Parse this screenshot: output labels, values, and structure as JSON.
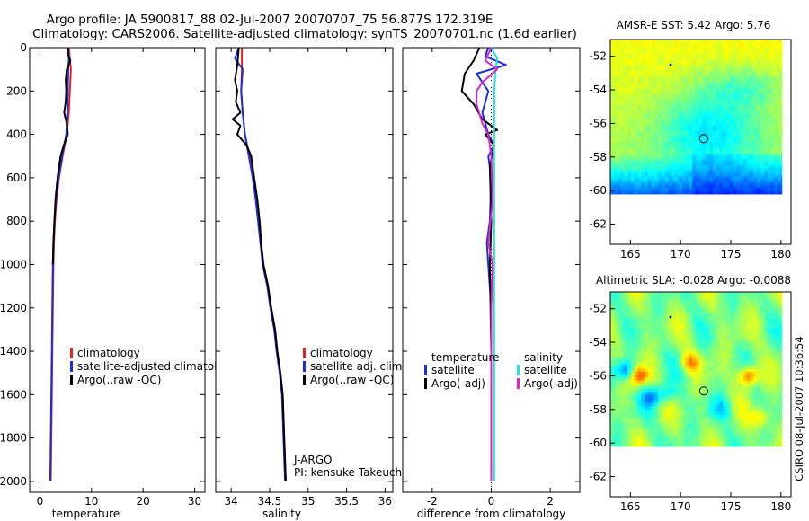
{
  "title_line1": "Argo profile: JA 5900817_88 02-Jul-2007 20070707_75 56.877S 172.319E",
  "title_line2": "Climatology: CARS2006. Satellite-adjusted climatology: synTS_20070701.nc (1.6d earlier)",
  "credit": "CSIRO 08-Jul-2007 10:36:54",
  "colors": {
    "clim": "#e8231e",
    "sat": "#1a2fd6",
    "argo": "#000000",
    "cyan": "#22e0e0",
    "magenta": "#e020d0"
  },
  "chart_data": [
    {
      "type": "line",
      "id": "temperature",
      "xlabel": "temperature",
      "xlim": [
        -2,
        32
      ],
      "ylim": [
        2050,
        0
      ],
      "xticks": [
        0,
        10,
        20,
        30
      ],
      "yticks": [
        0,
        200,
        400,
        600,
        800,
        1000,
        1200,
        1400,
        1600,
        1800,
        2000
      ],
      "legend": [
        "climatology",
        "satellite-adjusted climatology",
        "Argo(..raw -QC)"
      ],
      "series": [
        {
          "name": "climatology",
          "color": "clim",
          "points": [
            [
              5.6,
              0
            ],
            [
              5.8,
              50
            ],
            [
              6.0,
              100
            ],
            [
              5.8,
              200
            ],
            [
              5.6,
              300
            ],
            [
              5.2,
              400
            ],
            [
              4.4,
              500
            ],
            [
              3.7,
              600
            ],
            [
              3.2,
              700
            ],
            [
              2.9,
              800
            ],
            [
              2.7,
              900
            ],
            [
              2.6,
              1000
            ],
            [
              2.5,
              1200
            ],
            [
              2.4,
              1400
            ],
            [
              2.3,
              1600
            ],
            [
              2.2,
              1800
            ],
            [
              2.1,
              2000
            ]
          ]
        },
        {
          "name": "satellite-adjusted climatology",
          "color": "sat",
          "points": [
            [
              5.5,
              0
            ],
            [
              5.6,
              50
            ],
            [
              5.5,
              100
            ],
            [
              5.4,
              200
            ],
            [
              5.3,
              300
            ],
            [
              5.1,
              400
            ],
            [
              4.3,
              500
            ],
            [
              3.6,
              600
            ],
            [
              3.1,
              700
            ],
            [
              2.8,
              800
            ],
            [
              2.6,
              900
            ],
            [
              2.5,
              1000
            ],
            [
              2.4,
              1200
            ],
            [
              2.3,
              1400
            ],
            [
              2.2,
              1600
            ],
            [
              2.1,
              1800
            ],
            [
              2.0,
              2000
            ]
          ]
        },
        {
          "name": "Argo(..raw -QC)",
          "color": "argo",
          "points": [
            [
              5.4,
              0
            ],
            [
              5.4,
              30
            ],
            [
              5.9,
              60
            ],
            [
              5.2,
              100
            ],
            [
              5.0,
              150
            ],
            [
              5.1,
              200
            ],
            [
              5.0,
              250
            ],
            [
              4.7,
              300
            ],
            [
              5.2,
              350
            ],
            [
              5.4,
              400
            ],
            [
              4.6,
              450
            ],
            [
              4.0,
              500
            ],
            [
              3.4,
              600
            ],
            [
              3.0,
              700
            ],
            [
              2.8,
              800
            ],
            [
              2.6,
              900
            ],
            [
              2.5,
              1000
            ]
          ]
        }
      ]
    },
    {
      "type": "line",
      "id": "salinity",
      "xlabel": "salinity",
      "xlim": [
        33.8,
        36.1
      ],
      "ylim": [
        2050,
        0
      ],
      "xticks": [
        34,
        34.5,
        35,
        35.5,
        36
      ],
      "yticks": [
        0,
        200,
        400,
        600,
        800,
        1000,
        1200,
        1400,
        1600,
        1800,
        2000
      ],
      "legend": [
        "climatology",
        "satellite adj. clim.",
        "Argo(..raw -QC)"
      ],
      "annotation": [
        "J-ARGO",
        "PI: kensuke Takeuchi"
      ],
      "series": [
        {
          "name": "climatology",
          "color": "clim",
          "points": [
            [
              34.14,
              0
            ],
            [
              34.14,
              50
            ],
            [
              34.14,
              100
            ],
            [
              34.13,
              200
            ],
            [
              34.15,
              300
            ],
            [
              34.18,
              400
            ],
            [
              34.24,
              500
            ],
            [
              34.29,
              600
            ],
            [
              34.33,
              700
            ],
            [
              34.37,
              800
            ],
            [
              34.39,
              900
            ],
            [
              34.42,
              1000
            ],
            [
              34.48,
              1100
            ],
            [
              34.52,
              1200
            ],
            [
              34.57,
              1300
            ],
            [
              34.6,
              1400
            ],
            [
              34.64,
              1500
            ],
            [
              34.67,
              1600
            ],
            [
              34.69,
              1800
            ],
            [
              34.71,
              2000
            ]
          ]
        },
        {
          "name": "satellite adj. clim.",
          "color": "sat",
          "points": [
            [
              34.1,
              0
            ],
            [
              34.05,
              50
            ],
            [
              34.15,
              100
            ],
            [
              34.13,
              200
            ],
            [
              34.15,
              300
            ],
            [
              34.18,
              400
            ],
            [
              34.23,
              500
            ],
            [
              34.28,
              600
            ],
            [
              34.32,
              700
            ],
            [
              34.35,
              800
            ],
            [
              34.38,
              900
            ],
            [
              34.41,
              1000
            ],
            [
              34.47,
              1100
            ],
            [
              34.51,
              1200
            ],
            [
              34.56,
              1300
            ],
            [
              34.59,
              1400
            ],
            [
              34.63,
              1500
            ],
            [
              34.66,
              1600
            ],
            [
              34.68,
              1800
            ],
            [
              34.7,
              2000
            ]
          ]
        },
        {
          "name": "Argo(..raw -QC)",
          "color": "argo",
          "points": [
            [
              34.1,
              0
            ],
            [
              34.08,
              80
            ],
            [
              34.05,
              150
            ],
            [
              34.08,
              200
            ],
            [
              34.06,
              250
            ],
            [
              34.12,
              300
            ],
            [
              34.02,
              330
            ],
            [
              34.12,
              360
            ],
            [
              34.08,
              400
            ],
            [
              34.2,
              450
            ],
            [
              34.26,
              500
            ],
            [
              34.3,
              600
            ],
            [
              34.34,
              700
            ],
            [
              34.37,
              800
            ],
            [
              34.39,
              900
            ],
            [
              34.42,
              1000
            ],
            [
              34.48,
              1100
            ],
            [
              34.52,
              1200
            ],
            [
              34.57,
              1300
            ],
            [
              34.6,
              1400
            ],
            [
              34.64,
              1500
            ],
            [
              34.67,
              1600
            ],
            [
              34.69,
              1800
            ],
            [
              34.71,
              2000
            ]
          ]
        }
      ]
    },
    {
      "type": "line",
      "id": "difference",
      "xlabel": "difference from climatology",
      "xlim": [
        -3,
        3
      ],
      "ylim": [
        2050,
        0
      ],
      "xticks": [
        -2,
        0,
        2
      ],
      "yticks": [
        0,
        200,
        400,
        600,
        800,
        1000,
        1200,
        1400,
        1600,
        1800,
        2000
      ],
      "legend_groups": [
        {
          "title": "temperature",
          "items": [
            "satellite",
            "Argo(-adj)"
          ]
        },
        {
          "title": "salinity",
          "items": [
            "satellite",
            "Argo(-adj)"
          ]
        }
      ],
      "series": [
        {
          "name": "temperature satellite",
          "color": "sat",
          "points": [
            [
              -0.1,
              0
            ],
            [
              -0.2,
              40
            ],
            [
              0.5,
              80
            ],
            [
              -0.5,
              120
            ],
            [
              -0.1,
              200
            ],
            [
              -0.3,
              300
            ],
            [
              -0.1,
              400
            ],
            [
              0.1,
              450
            ],
            [
              -0.1,
              500
            ],
            [
              0,
              600
            ],
            [
              -0.05,
              800
            ],
            [
              -0.15,
              900
            ],
            [
              -0.1,
              1000
            ],
            [
              0,
              1200
            ],
            [
              0,
              1600
            ],
            [
              0,
              2000
            ]
          ]
        },
        {
          "name": "temperature Argo(-adj)",
          "color": "argo",
          "points": [
            [
              -0.4,
              0
            ],
            [
              -0.6,
              60
            ],
            [
              -0.9,
              120
            ],
            [
              -1.0,
              200
            ],
            [
              -0.6,
              260
            ],
            [
              -0.3,
              330
            ],
            [
              0.2,
              380
            ],
            [
              -0.2,
              400
            ],
            [
              0.1,
              450
            ],
            [
              -0.05,
              550
            ],
            [
              0,
              800
            ],
            [
              -0.05,
              1000
            ],
            [
              0,
              1400
            ],
            [
              0,
              2000
            ]
          ]
        },
        {
          "name": "salinity satellite",
          "color": "cyan",
          "points": [
            [
              0,
              0
            ],
            [
              0.2,
              50
            ],
            [
              0.15,
              100
            ],
            [
              0.1,
              200
            ],
            [
              0.1,
              400
            ],
            [
              0.1,
              600
            ],
            [
              0.1,
              800
            ],
            [
              0.1,
              1000
            ],
            [
              0.1,
              1400
            ],
            [
              0.1,
              2000
            ]
          ]
        },
        {
          "name": "salinity Argo(-adj)",
          "color": "magenta",
          "points": [
            [
              0,
              0
            ],
            [
              -0.2,
              60
            ],
            [
              0.2,
              100
            ],
            [
              -0.3,
              160
            ],
            [
              -0.5,
              200
            ],
            [
              -0.5,
              260
            ],
            [
              -0.3,
              350
            ],
            [
              -0.1,
              400
            ],
            [
              0,
              500
            ],
            [
              0.05,
              700
            ],
            [
              -0.1,
              900
            ],
            [
              0.05,
              1000
            ],
            [
              0,
              1200
            ],
            [
              0,
              2000
            ]
          ]
        }
      ]
    },
    {
      "type": "heatmap",
      "id": "sst",
      "title": "AMSR-E SST: 5.42 Argo: 5.76",
      "xlim": [
        163,
        181
      ],
      "ylim": [
        -63.2,
        -51
      ],
      "xticks": [
        165,
        170,
        175,
        180
      ],
      "yticks": [
        -52,
        -54,
        -56,
        -58,
        -60,
        -62
      ],
      "marker": [
        172.3,
        -56.9
      ],
      "dot": [
        169,
        -52.5
      ]
    },
    {
      "type": "heatmap",
      "id": "sla",
      "title": "Altimetric SLA: -0.028 Argo: -0.0088",
      "xlim": [
        163,
        181
      ],
      "ylim": [
        -63.2,
        -51
      ],
      "xticks": [
        165,
        170,
        175,
        180
      ],
      "yticks": [
        -52,
        -54,
        -56,
        -58,
        -60,
        -62
      ],
      "marker": [
        172.3,
        -56.9
      ],
      "dot": [
        169,
        -52.5
      ]
    }
  ]
}
